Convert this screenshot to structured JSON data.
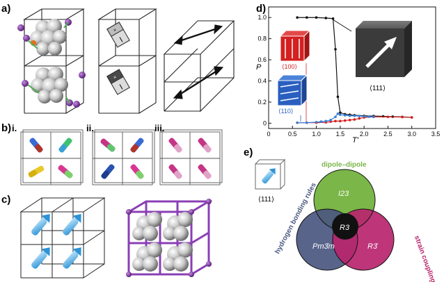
{
  "panels": {
    "a": {
      "label": "a)"
    },
    "b": {
      "label": "b)",
      "sub": [
        "i.",
        "ii.",
        "iii."
      ]
    },
    "c": {
      "label": "c)"
    },
    "d": {
      "label": "d)"
    },
    "e": {
      "label": "e)"
    }
  },
  "chart_data": {
    "type": "line",
    "xlabel": "T′",
    "ylabel": "P",
    "xlim": [
      0,
      3.5
    ],
    "ylim": [
      -0.05,
      1.1
    ],
    "xticks": [
      "0",
      "0.5",
      "1.0",
      "1.5",
      "2.0",
      "2.5",
      "3.0",
      "3.5"
    ],
    "yticks": [
      "0",
      "0.2",
      "0.4",
      "0.6",
      "0.8",
      "1.0"
    ],
    "series": [
      {
        "color": "#111111",
        "x": [
          0.6,
          0.8,
          1.0,
          1.2,
          1.35,
          1.4,
          1.45,
          1.5,
          1.6,
          1.7,
          1.8,
          2.0,
          2.2,
          2.4,
          2.6,
          2.8,
          3.0
        ],
        "y": [
          1.0,
          1.0,
          1.0,
          0.995,
          0.99,
          0.7,
          0.25,
          0.1,
          0.085,
          0.08,
          0.075,
          0.07,
          0.068,
          0.065,
          0.062,
          0.06,
          0.055
        ]
      },
      {
        "color": "#d42020",
        "x": [
          0.6,
          0.8,
          1.0,
          1.2,
          1.3,
          1.4,
          1.5,
          1.6,
          1.7,
          1.8,
          1.9,
          2.0,
          2.2,
          2.5,
          2.8,
          3.0
        ],
        "y": [
          0.005,
          0.005,
          0.005,
          0.008,
          0.015,
          0.02,
          0.02,
          0.025,
          0.03,
          0.035,
          0.045,
          0.055,
          0.06,
          0.06,
          0.058,
          0.055
        ]
      },
      {
        "color": "#3a7fd5",
        "x": [
          0.6,
          0.8,
          1.0,
          1.1,
          1.2,
          1.3,
          1.4,
          1.45,
          1.5,
          1.6,
          1.7,
          1.8,
          1.9,
          2.0,
          2.1,
          2.2
        ],
        "y": [
          0.005,
          0.005,
          0.01,
          0.015,
          0.02,
          0.03,
          0.06,
          0.09,
          0.08,
          0.075,
          0.07,
          0.07,
          0.068,
          0.065,
          0.062,
          0.06
        ]
      }
    ],
    "annotations": [
      "⟨100⟩",
      "⟨110⟩",
      "⟨111⟩"
    ]
  },
  "venn": {
    "circles": [
      {
        "label": "dipole–dipole",
        "group": "I23",
        "color": "#7ab648"
      },
      {
        "label": "hydrogen bonding rules",
        "group": "Pm3̄m",
        "color": "#4a5780"
      },
      {
        "label": "strain coupling",
        "group": "R3̄",
        "color": "#b8256e"
      }
    ],
    "center": "R3",
    "inset": "⟨111⟩"
  }
}
